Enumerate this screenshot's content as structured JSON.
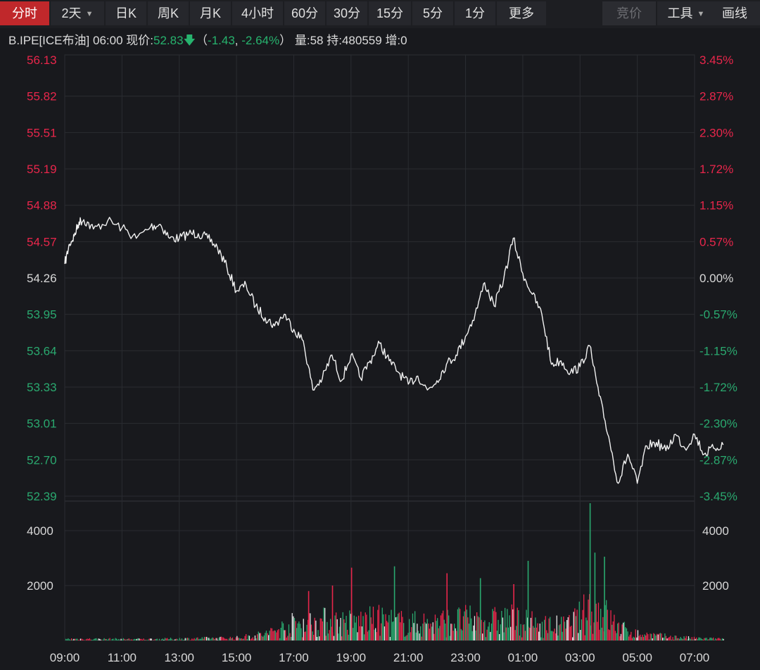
{
  "toolbar": {
    "tabs": [
      {
        "label": "分时",
        "active": true
      },
      {
        "label": "2天",
        "dropdown": true
      },
      {
        "label": "日K"
      },
      {
        "label": "周K"
      },
      {
        "label": "月K"
      },
      {
        "label": "4小时"
      },
      {
        "label": "60分"
      },
      {
        "label": "30分"
      },
      {
        "label": "15分"
      },
      {
        "label": "5分"
      },
      {
        "label": "1分"
      },
      {
        "label": "更多"
      }
    ],
    "right": [
      {
        "label": "竞价",
        "disabled": true
      },
      {
        "label": "工具",
        "dropdown": true
      },
      {
        "label": "画线"
      }
    ]
  },
  "info": {
    "symbol": "B.IPE[ICE布油]",
    "time": "06:00",
    "price_label": "现价:",
    "price": "52.83",
    "change": "-1.43",
    "change_pct": "-2.64%",
    "volume_label": "量:",
    "volume": "58",
    "oi_label": "持:",
    "oi": "480559",
    "inc_label": "增:",
    "inc": "0"
  },
  "colors": {
    "up": "#e8264b",
    "down": "#2aa96f",
    "line": "#f2f2f2",
    "grid": "#2a2c31",
    "neutral": "#d8d8d8"
  },
  "chart_data": {
    "type": "line",
    "reference_price": 54.26,
    "ylim": [
      52.39,
      56.13
    ],
    "price_ticks": [
      "56.13",
      "55.82",
      "55.51",
      "55.19",
      "54.88",
      "54.57",
      "54.26",
      "53.95",
      "53.64",
      "53.33",
      "53.01",
      "52.70",
      "52.39"
    ],
    "pct_ticks": [
      "3.45%",
      "2.87%",
      "2.30%",
      "1.72%",
      "1.15%",
      "0.57%",
      "0.00%",
      "-0.57%",
      "-1.15%",
      "-1.72%",
      "-2.30%",
      "-2.87%",
      "-3.45%"
    ],
    "x_ticks": [
      "09:00",
      "11:00",
      "13:00",
      "15:00",
      "17:00",
      "19:00",
      "21:00",
      "23:00",
      "01:00",
      "03:00",
      "05:00",
      "07:00"
    ],
    "x_range": [
      "09:00",
      "07:00 (+1d)"
    ],
    "price_series": {
      "name": "price",
      "points": [
        [
          "09:00",
          54.38
        ],
        [
          "09:10",
          54.55
        ],
        [
          "09:20",
          54.62
        ],
        [
          "09:30",
          54.74
        ],
        [
          "09:40",
          54.76
        ],
        [
          "10:00",
          54.68
        ],
        [
          "10:30",
          54.75
        ],
        [
          "11:00",
          54.69
        ],
        [
          "11:30",
          54.6
        ],
        [
          "12:00",
          54.7
        ],
        [
          "12:20",
          54.72
        ],
        [
          "12:40",
          54.6
        ],
        [
          "13:00",
          54.6
        ],
        [
          "13:20",
          54.64
        ],
        [
          "13:40",
          54.64
        ],
        [
          "14:00",
          54.6
        ],
        [
          "14:20",
          54.52
        ],
        [
          "14:40",
          54.35
        ],
        [
          "15:00",
          54.15
        ],
        [
          "15:20",
          54.2
        ],
        [
          "15:40",
          54.02
        ],
        [
          "16:00",
          53.92
        ],
        [
          "16:20",
          53.85
        ],
        [
          "16:40",
          53.95
        ],
        [
          "17:00",
          53.82
        ],
        [
          "17:20",
          53.72
        ],
        [
          "17:40",
          53.3
        ],
        [
          "18:00",
          53.4
        ],
        [
          "18:20",
          53.6
        ],
        [
          "18:40",
          53.38
        ],
        [
          "19:00",
          53.6
        ],
        [
          "19:20",
          53.4
        ],
        [
          "19:40",
          53.55
        ],
        [
          "20:00",
          53.7
        ],
        [
          "20:20",
          53.55
        ],
        [
          "20:40",
          53.45
        ],
        [
          "21:00",
          53.35
        ],
        [
          "21:20",
          53.42
        ],
        [
          "21:40",
          53.3
        ],
        [
          "22:00",
          53.38
        ],
        [
          "22:20",
          53.52
        ],
        [
          "22:40",
          53.6
        ],
        [
          "23:00",
          53.76
        ],
        [
          "23:20",
          53.95
        ],
        [
          "23:40",
          54.22
        ],
        [
          "00:00",
          54.02
        ],
        [
          "00:20",
          54.25
        ],
        [
          "00:40",
          54.6
        ],
        [
          "01:00",
          54.3
        ],
        [
          "01:20",
          54.12
        ],
        [
          "01:40",
          53.95
        ],
        [
          "02:00",
          53.52
        ],
        [
          "02:20",
          53.55
        ],
        [
          "02:40",
          53.45
        ],
        [
          "03:00",
          53.5
        ],
        [
          "03:20",
          53.68
        ],
        [
          "03:40",
          53.25
        ],
        [
          "04:00",
          52.9
        ],
        [
          "04:20",
          52.5
        ],
        [
          "04:40",
          52.75
        ],
        [
          "05:00",
          52.5
        ],
        [
          "05:20",
          52.82
        ],
        [
          "05:40",
          52.85
        ],
        [
          "06:00",
          52.78
        ],
        [
          "06:20",
          52.92
        ],
        [
          "06:40",
          52.8
        ],
        [
          "07:00",
          52.92
        ],
        [
          "07:20",
          52.75
        ],
        [
          "07:40",
          52.8
        ],
        [
          "08:00",
          52.83
        ]
      ]
    },
    "volume_ticks": [
      "4000",
      "2000"
    ],
    "volume_ylim": [
      0,
      5000
    ],
    "volume_series": {
      "name": "volume",
      "keyframes": [
        [
          "09:00",
          60
        ],
        [
          "12:00",
          50
        ],
        [
          "15:00",
          100
        ],
        [
          "16:00",
          250
        ],
        [
          "17:00",
          650
        ],
        [
          "18:00",
          750
        ],
        [
          "19:00",
          700
        ],
        [
          "20:00",
          800
        ],
        [
          "21:00",
          650
        ],
        [
          "22:00",
          700
        ],
        [
          "23:00",
          800
        ],
        [
          "23:40",
          700
        ],
        [
          "00:30",
          850
        ],
        [
          "01:30",
          600
        ],
        [
          "02:30",
          550
        ],
        [
          "03:00",
          900
        ],
        [
          "03:20",
          1300
        ],
        [
          "03:40",
          1200
        ],
        [
          "04:20",
          500
        ],
        [
          "05:00",
          250
        ],
        [
          "06:00",
          150
        ],
        [
          "07:00",
          80
        ],
        [
          "08:00",
          60
        ]
      ],
      "spikes": [
        [
          "03:20",
          5000,
          "down"
        ],
        [
          "03:30",
          3200,
          "down"
        ],
        [
          "03:50",
          3050,
          "down"
        ],
        [
          "01:10",
          2900,
          "down"
        ],
        [
          "20:30",
          2700,
          "down"
        ],
        [
          "19:00",
          2650,
          "up"
        ],
        [
          "22:20",
          2450,
          "up"
        ],
        [
          "23:30",
          2270,
          "down"
        ],
        [
          "18:20",
          2000,
          "up"
        ],
        [
          "17:30",
          1800,
          "up"
        ],
        [
          "00:40",
          2050,
          "up"
        ]
      ]
    }
  }
}
